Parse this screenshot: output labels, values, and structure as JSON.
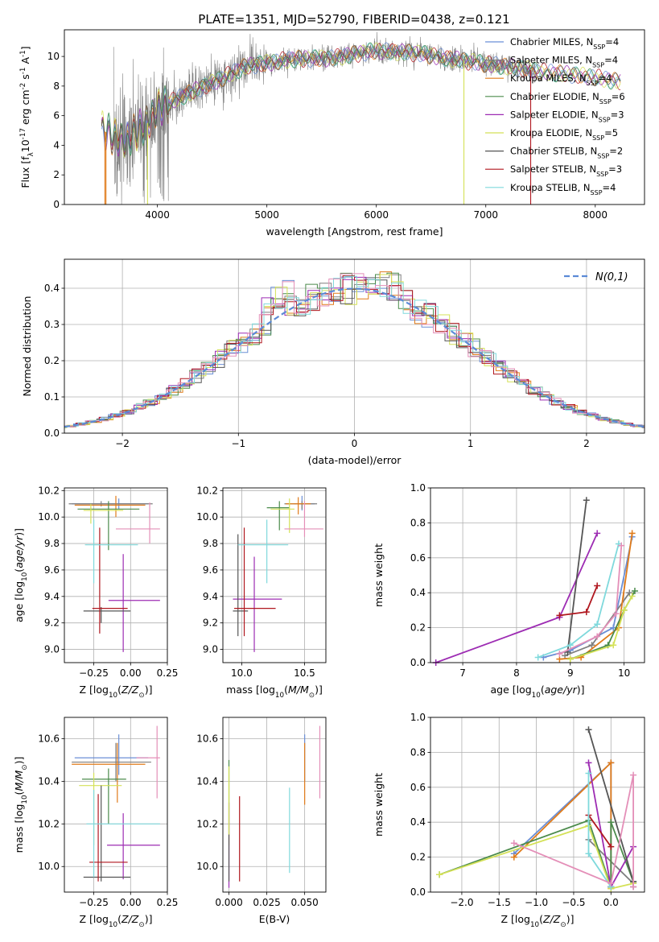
{
  "figure": {
    "title": "PLATE=1351, MJD=52790, FIBERID=0438, z=0.121"
  },
  "colors": [
    "#6b8fd6",
    "#7f7f7f",
    "#e07b1a",
    "#4b8b4b",
    "#9d2cb3",
    "#d4e157",
    "#555555",
    "#b0171f",
    "#7fd9dc",
    "#e48fb8"
  ],
  "chart_data": [
    {
      "id": "spectrum",
      "type": "line",
      "xlabel": "wavelength [Angstrom, rest frame]",
      "ylabel": "Flux [f$_\\lambda$10$^{-17}$ erg cm$^{-2}$ s$^{-1}$ A$^{-1}$]",
      "xlim": [
        3150,
        8450
      ],
      "ylim": [
        0,
        11.8
      ],
      "xticks": [
        4000,
        5000,
        6000,
        7000,
        8000
      ],
      "yticks": [
        0,
        2,
        4,
        6,
        8,
        10
      ],
      "grid": false,
      "legend": "top-right",
      "legend_entries": [
        {
          "label": "Chabrier MILES, N",
          "sub": "SSP",
          "suffix": "=4",
          "color": "#6b8fd6"
        },
        {
          "label": "Salpeter MILES, N",
          "sub": "SSP",
          "suffix": "=4",
          "color": "#7f7f7f"
        },
        {
          "label": "Kroupa MILES, N",
          "sub": "SSP",
          "suffix": "=4",
          "color": "#e07b1a"
        },
        {
          "label": "Chabrier ELODIE, N",
          "sub": "SSP",
          "suffix": "=6",
          "color": "#4b8b4b"
        },
        {
          "label": "Salpeter ELODIE, N",
          "sub": "SSP",
          "suffix": "=3",
          "color": "#9d2cb3"
        },
        {
          "label": "Kroupa ELODIE, N",
          "sub": "SSP",
          "suffix": "=5",
          "color": "#d4e157"
        },
        {
          "label": "Chabrier STELIB, N",
          "sub": "SSP",
          "suffix": "=2",
          "color": "#555555"
        },
        {
          "label": "Salpeter STELIB, N",
          "sub": "SSP",
          "suffix": "=3",
          "color": "#b0171f"
        },
        {
          "label": "Kroupa STELIB, N",
          "sub": "SSP",
          "suffix": "=4",
          "color": "#7fd9dc"
        }
      ],
      "continuum": [
        [
          3500,
          5.0
        ],
        [
          3700,
          4.3
        ],
        [
          3900,
          5.4
        ],
        [
          4000,
          6.5
        ],
        [
          4200,
          7.2
        ],
        [
          4500,
          8.2
        ],
        [
          4800,
          9.3
        ],
        [
          5200,
          9.8
        ],
        [
          5600,
          9.9
        ],
        [
          6000,
          10.4
        ],
        [
          6400,
          10.2
        ],
        [
          6800,
          9.7
        ],
        [
          7200,
          9.3
        ],
        [
          7600,
          8.9
        ],
        [
          8000,
          8.6
        ],
        [
          8200,
          8.3
        ]
      ],
      "observed_range": [
        3600,
        7450
      ],
      "model_range": [
        3490,
        8230
      ],
      "deep_absorption": [
        3520,
        3530,
        3910,
        6800,
        7410
      ]
    },
    {
      "id": "residuals",
      "type": "histogram",
      "xlabel": "(data-model)/error",
      "ylabel": "Normed distribution",
      "xlim": [
        -2.5,
        2.5
      ],
      "ylim": [
        0,
        0.48
      ],
      "xticks": [
        -2,
        -1,
        0,
        1,
        2
      ],
      "yticks": [
        0.0,
        0.1,
        0.2,
        0.3,
        0.4
      ],
      "grid": true,
      "legend_label": "$\\mathcal{N}(0,1)$",
      "bin_width": 0.1
    },
    {
      "id": "age_vs_Z",
      "type": "errorbar",
      "xlabel": "Z [log$_{10}$($Z/Z_\\odot$)]",
      "ylabel": "age  [log$_{10}$($age/yr$)]",
      "xlim": [
        -0.45,
        0.25
      ],
      "ylim": [
        8.9,
        10.22
      ],
      "xticks": [
        -0.25,
        0.0,
        0.25
      ],
      "yticks": [
        9.0,
        9.2,
        9.4,
        9.6,
        9.8,
        10.0,
        10.2
      ],
      "points": [
        {
          "c": 0,
          "x": -0.08,
          "y": 10.1,
          "xl": -0.4,
          "xh": 0.12,
          "yl": 10.06,
          "yh": 10.14
        },
        {
          "c": 1,
          "x": -0.2,
          "y": 10.1,
          "xl": -0.42,
          "xh": 0.15,
          "yl": 10.08,
          "yh": 10.12
        },
        {
          "c": 2,
          "x": -0.1,
          "y": 10.09,
          "xl": -0.38,
          "xh": 0.1,
          "yl": 10.0,
          "yh": 10.16
        },
        {
          "c": 3,
          "x": -0.15,
          "y": 10.06,
          "xl": -0.36,
          "xh": 0.06,
          "yl": 9.75,
          "yh": 10.12
        },
        {
          "c": 4,
          "x": -0.05,
          "y": 9.37,
          "xl": -0.15,
          "xh": 0.2,
          "yl": 8.98,
          "yh": 9.72
        },
        {
          "c": 5,
          "x": -0.27,
          "y": 10.05,
          "xl": -0.32,
          "xh": -0.05,
          "yl": 9.95,
          "yh": 10.1
        },
        {
          "c": 6,
          "x": -0.2,
          "y": 9.29,
          "xl": -0.32,
          "xh": 0.0,
          "yl": 9.2,
          "yh": 9.32
        },
        {
          "c": 7,
          "x": -0.21,
          "y": 9.31,
          "xl": -0.26,
          "xh": -0.02,
          "yl": 9.12,
          "yh": 9.92
        },
        {
          "c": 8,
          "x": -0.25,
          "y": 9.79,
          "xl": -0.31,
          "xh": 0.05,
          "yl": 9.5,
          "yh": 9.98
        },
        {
          "c": 9,
          "x": 0.13,
          "y": 9.91,
          "xl": -0.1,
          "xh": 0.2,
          "yl": 9.8,
          "yh": 10.11
        }
      ]
    },
    {
      "id": "age_vs_mass",
      "type": "errorbar",
      "xlabel": "mass [log$_{10}$($M/M_\\odot$)]",
      "ylabel": "",
      "xlim": [
        9.85,
        10.67
      ],
      "ylim": [
        8.9,
        10.22
      ],
      "xticks": [
        10.0,
        10.5
      ],
      "yticks": [
        9.0,
        9.2,
        9.4,
        9.6,
        9.8,
        10.0,
        10.2
      ],
      "points": [
        {
          "c": 0,
          "x": 10.48,
          "y": 10.1,
          "xl": 10.42,
          "xh": 10.58,
          "yl": 10.05,
          "yh": 10.16
        },
        {
          "c": 1,
          "x": 10.48,
          "y": 10.1,
          "xl": 10.34,
          "xh": 10.6,
          "yl": 10.06,
          "yh": 10.12
        },
        {
          "c": 2,
          "x": 10.45,
          "y": 10.1,
          "xl": 10.35,
          "xh": 10.55,
          "yl": 10.02,
          "yh": 10.15
        },
        {
          "c": 3,
          "x": 10.3,
          "y": 10.07,
          "xl": 10.2,
          "xh": 10.38,
          "yl": 9.9,
          "yh": 10.12
        },
        {
          "c": 4,
          "x": 10.1,
          "y": 9.38,
          "xl": 9.93,
          "xh": 10.32,
          "yl": 8.98,
          "yh": 9.7
        },
        {
          "c": 5,
          "x": 10.38,
          "y": 10.06,
          "xl": 10.23,
          "xh": 10.42,
          "yl": 9.88,
          "yh": 10.14
        },
        {
          "c": 6,
          "x": 9.97,
          "y": 9.29,
          "xl": 9.93,
          "xh": 10.05,
          "yl": 9.1,
          "yh": 9.87
        },
        {
          "c": 7,
          "x": 10.02,
          "y": 9.31,
          "xl": 9.94,
          "xh": 10.27,
          "yl": 9.1,
          "yh": 9.92
        },
        {
          "c": 8,
          "x": 10.2,
          "y": 9.79,
          "xl": 9.97,
          "xh": 10.37,
          "yl": 9.5,
          "yh": 9.98
        },
        {
          "c": 9,
          "x": 10.5,
          "y": 9.91,
          "xl": 10.34,
          "xh": 10.65,
          "yl": 9.85,
          "yh": 10.12
        }
      ]
    },
    {
      "id": "mass_weight_vs_age",
      "type": "line",
      "xlabel": "age  [log$_{10}$($age/yr$)]",
      "ylabel": "mass weight",
      "xlim": [
        6.4,
        10.38
      ],
      "ylim": [
        0,
        1.0
      ],
      "xticks": [
        7,
        8,
        9,
        10
      ],
      "yticks": [
        0.0,
        0.2,
        0.4,
        0.6,
        0.8,
        1.0
      ],
      "series": [
        {
          "c": 0,
          "pts": [
            [
              8.5,
              0.03
            ],
            [
              9.0,
              0.07
            ],
            [
              9.8,
              0.2
            ],
            [
              10.15,
              0.72
            ]
          ]
        },
        {
          "c": 1,
          "pts": [
            [
              8.9,
              0.04
            ],
            [
              9.4,
              0.1
            ],
            [
              10.1,
              0.4
            ]
          ]
        },
        {
          "c": 2,
          "pts": [
            [
              8.8,
              0.02
            ],
            [
              9.2,
              0.03
            ],
            [
              9.9,
              0.2
            ],
            [
              10.15,
              0.74
            ]
          ]
        },
        {
          "c": 3,
          "pts": [
            [
              9.0,
              0.02
            ],
            [
              9.7,
              0.1
            ],
            [
              10.0,
              0.3
            ],
            [
              10.2,
              0.41
            ]
          ]
        },
        {
          "c": 4,
          "pts": [
            [
              6.5,
              0.0
            ],
            [
              8.8,
              0.26
            ],
            [
              9.5,
              0.74
            ]
          ]
        },
        {
          "c": 5,
          "pts": [
            [
              9.0,
              0.02
            ],
            [
              9.8,
              0.1
            ],
            [
              10.0,
              0.3
            ],
            [
              10.15,
              0.38
            ]
          ]
        },
        {
          "c": 6,
          "pts": [
            [
              8.95,
              0.06
            ],
            [
              9.3,
              0.93
            ]
          ]
        },
        {
          "c": 7,
          "pts": [
            [
              8.8,
              0.27
            ],
            [
              9.3,
              0.29
            ],
            [
              9.5,
              0.44
            ]
          ]
        },
        {
          "c": 8,
          "pts": [
            [
              8.4,
              0.03
            ],
            [
              9.0,
              0.1
            ],
            [
              9.5,
              0.22
            ],
            [
              9.9,
              0.68
            ]
          ]
        },
        {
          "c": 9,
          "pts": [
            [
              8.8,
              0.05
            ],
            [
              9.5,
              0.15
            ],
            [
              9.85,
              0.28
            ],
            [
              9.95,
              0.67
            ]
          ]
        }
      ]
    },
    {
      "id": "mass_vs_Z",
      "type": "errorbar",
      "xlabel": "Z [log$_{10}$($Z/Z_\\odot$)]",
      "ylabel": "mass [log$_{10}$($M/M_\\odot$)]",
      "xlim": [
        -0.45,
        0.25
      ],
      "ylim": [
        9.88,
        10.7
      ],
      "xticks": [
        -0.25,
        0.0,
        0.25
      ],
      "yticks": [
        10.0,
        10.2,
        10.4,
        10.6
      ],
      "points": [
        {
          "c": 0,
          "x": -0.08,
          "y": 10.51,
          "xl": -0.38,
          "xh": 0.12,
          "yl": 10.43,
          "yh": 10.62
        },
        {
          "c": 1,
          "x": -0.1,
          "y": 10.49,
          "xl": -0.4,
          "xh": 0.14,
          "yl": 10.4,
          "yh": 10.58
        },
        {
          "c": 2,
          "x": -0.09,
          "y": 10.48,
          "xl": -0.4,
          "xh": 0.1,
          "yl": 10.3,
          "yh": 10.58
        },
        {
          "c": 3,
          "x": -0.15,
          "y": 10.41,
          "xl": -0.33,
          "xh": -0.03,
          "yl": 10.2,
          "yh": 10.46
        },
        {
          "c": 4,
          "x": -0.05,
          "y": 10.1,
          "xl": -0.16,
          "xh": 0.2,
          "yl": 9.94,
          "yh": 10.25
        },
        {
          "c": 5,
          "x": -0.25,
          "y": 10.38,
          "xl": -0.35,
          "xh": -0.06,
          "yl": 10.1,
          "yh": 10.44
        },
        {
          "c": 6,
          "x": -0.2,
          "y": 9.95,
          "xl": -0.32,
          "xh": 0.0,
          "yl": 9.93,
          "yh": 10.38
        },
        {
          "c": 7,
          "x": -0.22,
          "y": 10.02,
          "xl": -0.28,
          "xh": -0.02,
          "yl": 9.93,
          "yh": 10.34
        },
        {
          "c": 8,
          "x": -0.25,
          "y": 10.2,
          "xl": -0.3,
          "xh": 0.2,
          "yl": 9.95,
          "yh": 10.36
        },
        {
          "c": 9,
          "x": 0.18,
          "y": 10.51,
          "xl": 0.04,
          "xh": 0.2,
          "yl": 10.32,
          "yh": 10.66
        }
      ]
    },
    {
      "id": "mass_vs_ebv",
      "type": "errorbar",
      "xlabel": "E(B-V)",
      "ylabel": "",
      "xlim": [
        -0.004,
        0.064
      ],
      "ylim": [
        9.88,
        10.7
      ],
      "xticks": [
        0.0,
        0.025,
        0.05
      ],
      "yticks": [
        10.0,
        10.2,
        10.4,
        10.6
      ],
      "points": [
        {
          "c": 0,
          "x": 0.05,
          "y": 10.5,
          "yl": 10.4,
          "yh": 10.62
        },
        {
          "c": 2,
          "x": 0.05,
          "y": 10.45,
          "yl": 10.29,
          "yh": 10.58
        },
        {
          "c": 3,
          "x": 0.0,
          "y": 10.35,
          "yl": 10.15,
          "yh": 10.5
        },
        {
          "c": 4,
          "x": 0.0,
          "y": 10.1,
          "yl": 9.9,
          "yh": 10.3
        },
        {
          "c": 5,
          "x": 0.0,
          "y": 10.38,
          "yl": 10.1,
          "yh": 10.47
        },
        {
          "c": 6,
          "x": 0.0,
          "y": 9.95,
          "yl": 9.93,
          "yh": 10.15
        },
        {
          "c": 7,
          "x": 0.007,
          "y": 10.1,
          "yl": 9.93,
          "yh": 10.33
        },
        {
          "c": 8,
          "x": 0.04,
          "y": 10.2,
          "yl": 9.97,
          "yh": 10.37
        },
        {
          "c": 9,
          "x": 0.06,
          "y": 10.5,
          "yl": 10.32,
          "yh": 10.66
        }
      ]
    },
    {
      "id": "mass_weight_vs_Z",
      "type": "line",
      "xlabel": "Z [log$_{10}$($Z/Z_\\odot$)]",
      "ylabel": "mass weight",
      "xlim": [
        -2.42,
        0.45
      ],
      "ylim": [
        0,
        1.0
      ],
      "xticks": [
        -2.0,
        -1.5,
        -1.0,
        -0.5,
        0.0
      ],
      "yticks": [
        0.0,
        0.2,
        0.4,
        0.6,
        0.8,
        1.0
      ],
      "series": [
        {
          "c": 0,
          "pts": [
            [
              -1.3,
              0.22
            ],
            [
              0.0,
              0.74
            ],
            [
              0.0,
              0.03
            ]
          ]
        },
        {
          "c": 1,
          "pts": [
            [
              -0.3,
              0.3
            ],
            [
              0.3,
              0.05
            ],
            [
              0.3,
              0.03
            ]
          ]
        },
        {
          "c": 2,
          "pts": [
            [
              -1.3,
              0.2
            ],
            [
              0.0,
              0.74
            ],
            [
              0.0,
              0.02
            ]
          ]
        },
        {
          "c": 3,
          "pts": [
            [
              -2.3,
              0.1
            ],
            [
              -0.3,
              0.41
            ],
            [
              0.0,
              0.03
            ],
            [
              0.0,
              0.4
            ],
            [
              0.3,
              0.06
            ]
          ]
        },
        {
          "c": 4,
          "pts": [
            [
              -0.3,
              0.74
            ],
            [
              0.0,
              0.03
            ],
            [
              0.3,
              0.26
            ]
          ]
        },
        {
          "c": 5,
          "pts": [
            [
              -2.3,
              0.1
            ],
            [
              -0.3,
              0.38
            ],
            [
              0.0,
              0.02
            ],
            [
              0.3,
              0.05
            ]
          ]
        },
        {
          "c": 6,
          "pts": [
            [
              -0.3,
              0.93
            ],
            [
              0.3,
              0.06
            ]
          ]
        },
        {
          "c": 7,
          "pts": [
            [
              -0.3,
              0.44
            ],
            [
              0.0,
              0.26
            ]
          ]
        },
        {
          "c": 8,
          "pts": [
            [
              -0.3,
              0.68
            ],
            [
              -0.3,
              0.22
            ],
            [
              0.0,
              0.03
            ]
          ]
        },
        {
          "c": 9,
          "pts": [
            [
              -1.3,
              0.28
            ],
            [
              0.0,
              0.05
            ],
            [
              0.3,
              0.67
            ],
            [
              0.3,
              0.03
            ]
          ]
        }
      ]
    }
  ]
}
